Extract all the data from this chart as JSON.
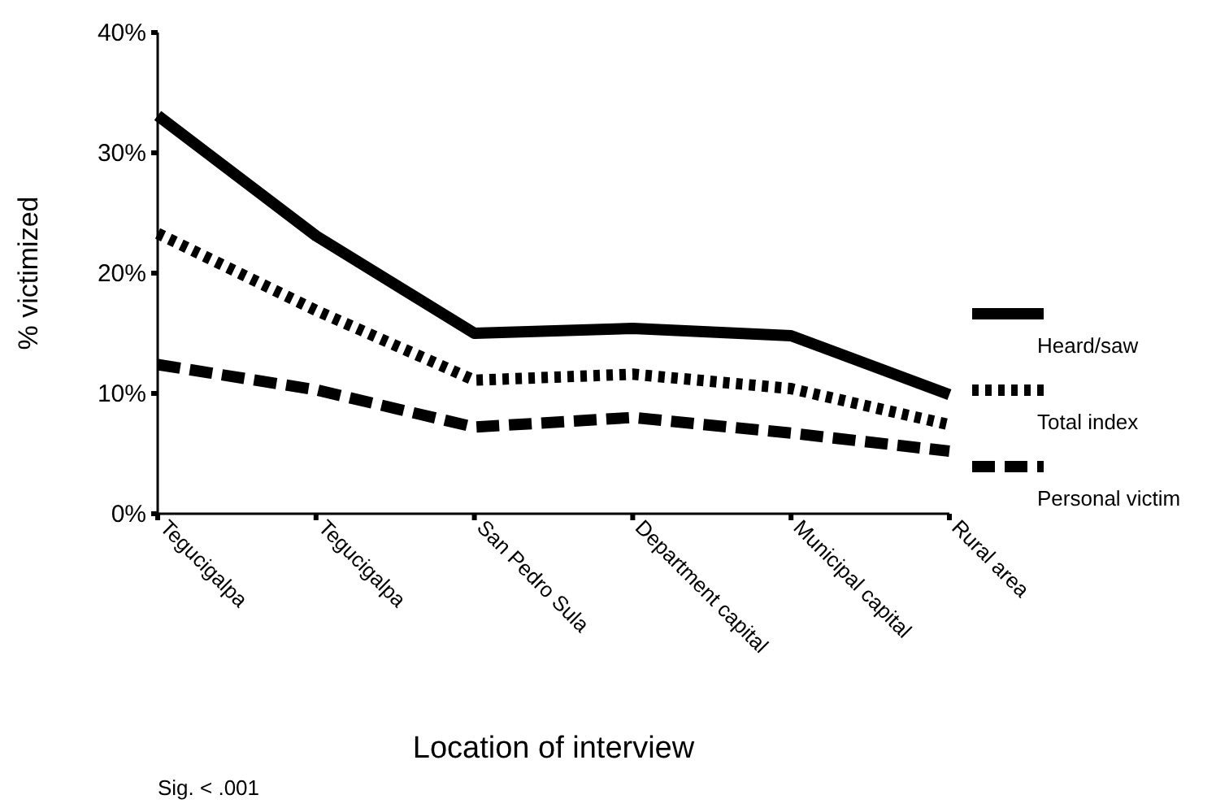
{
  "chart_data": {
    "type": "line",
    "xlabel": "Location of interview",
    "ylabel": "% victimized",
    "categories": [
      "Tegucigalpa",
      "Tegucigalpa",
      "San Pedro Sula",
      "Department capital",
      "Municipal capital",
      "Rural area"
    ],
    "series": [
      {
        "name": "Heard/saw",
        "color": "#000000",
        "line_style": "solid",
        "values": [
          33.1,
          23.1,
          15.0,
          15.4,
          14.8,
          9.9
        ]
      },
      {
        "name": "Total  index",
        "color": "#000000",
        "line_style": "dotted",
        "values": [
          23.3,
          16.9,
          11.1,
          11.6,
          10.4,
          7.4
        ]
      },
      {
        "name": "Personal victim",
        "color": "#000000",
        "line_style": "dashed",
        "values": [
          12.4,
          10.3,
          7.2,
          8.0,
          6.7,
          5.2
        ]
      }
    ],
    "ylim": [
      0,
      40
    ],
    "yticks": [
      {
        "value": 0,
        "label": "0%"
      },
      {
        "value": 10,
        "label": "10%"
      },
      {
        "value": 20,
        "label": "20%"
      },
      {
        "value": 30,
        "label": "30%"
      },
      {
        "value": 40,
        "label": "40%"
      }
    ],
    "grid": false,
    "legend": "right",
    "marker": "none",
    "annotations": [
      "Sig. < .001"
    ]
  }
}
